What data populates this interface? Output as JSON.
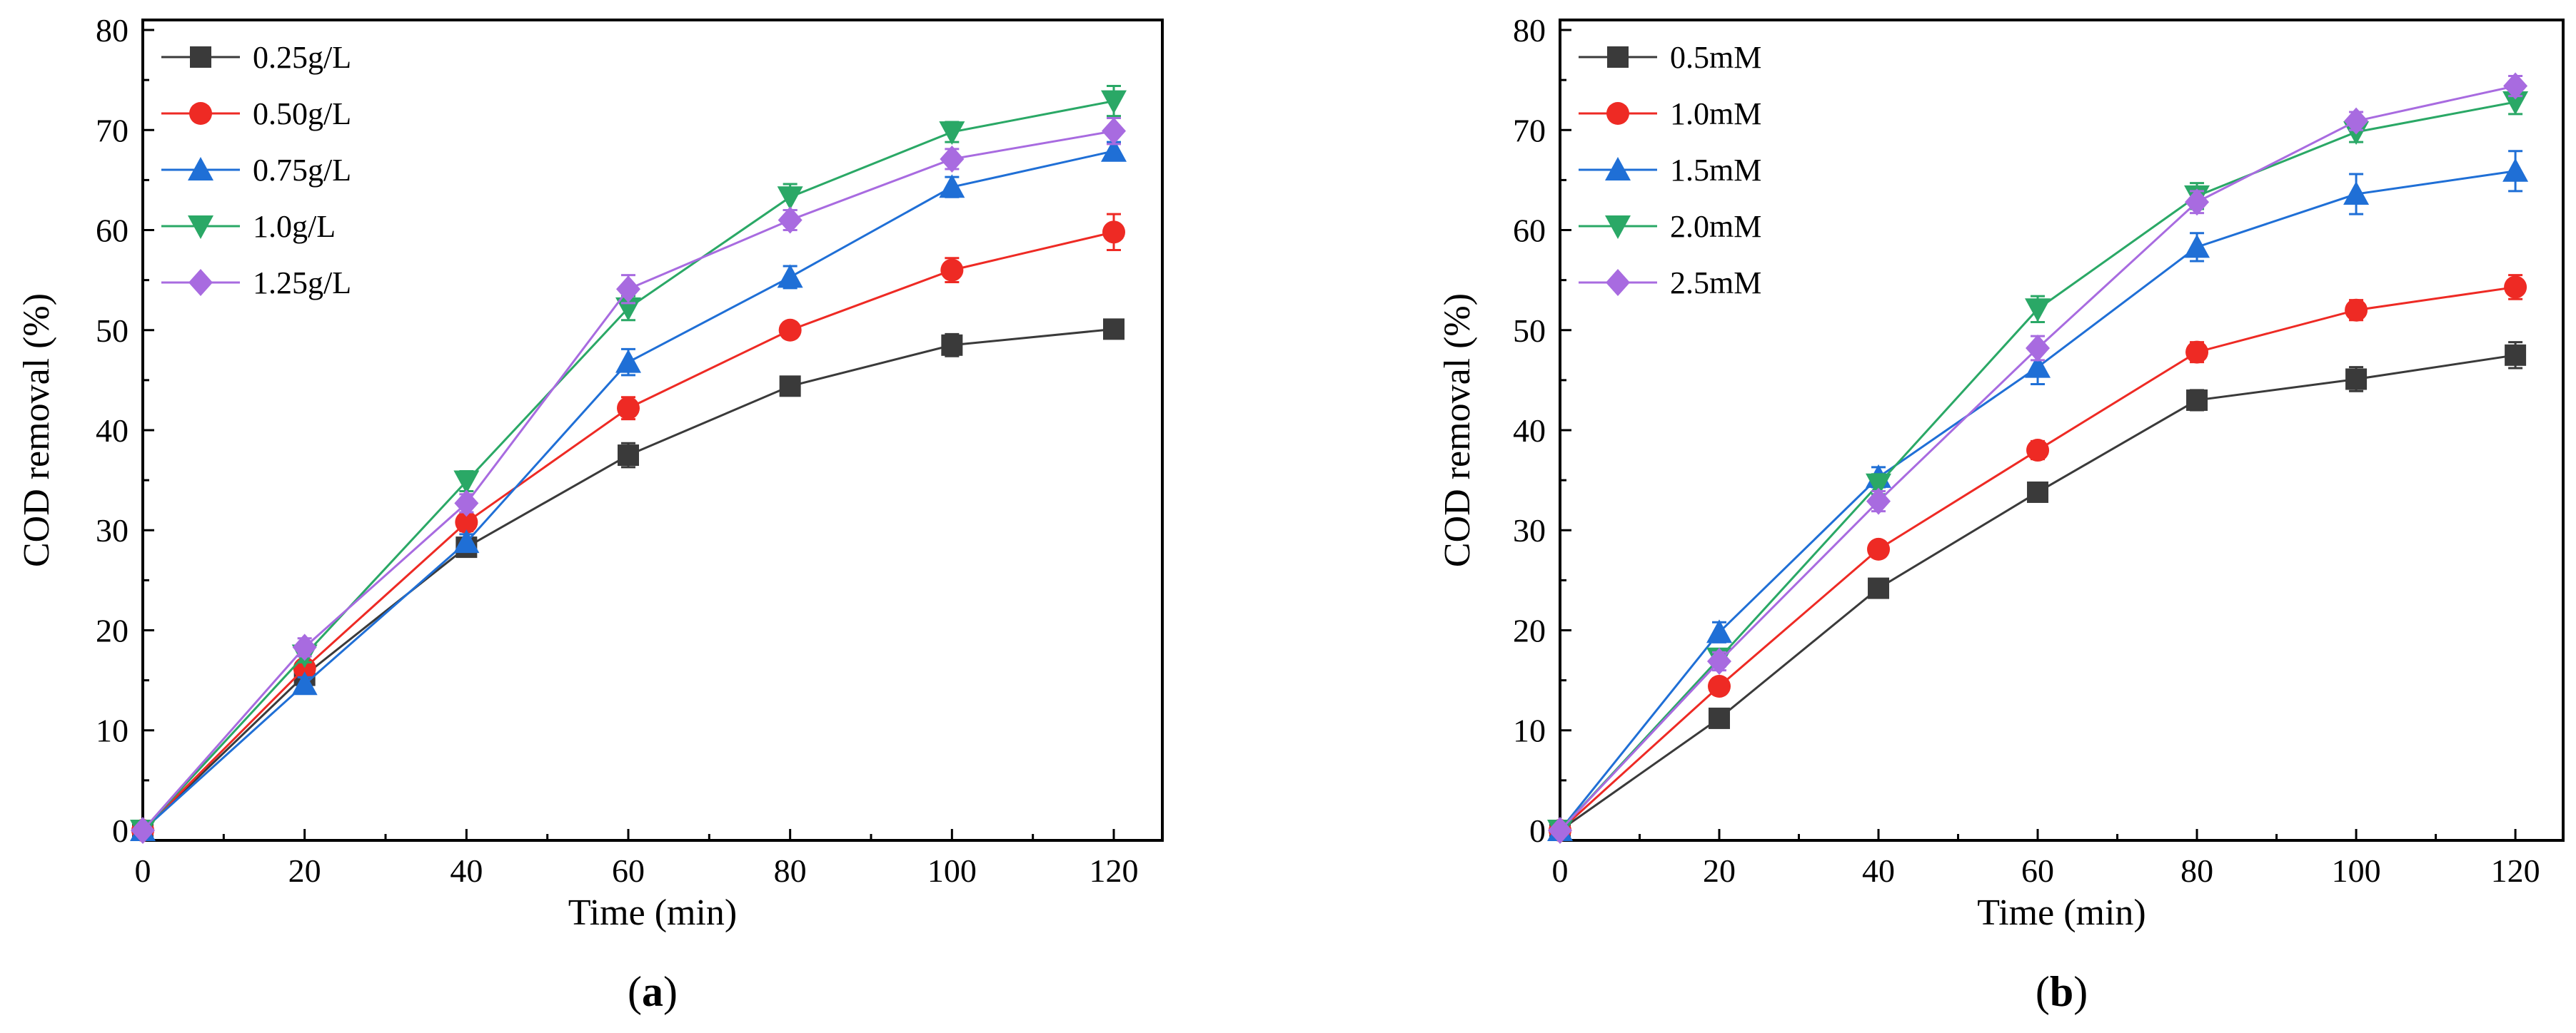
{
  "chart_data": [
    {
      "type": "line",
      "panel_label": "a",
      "xlabel": "Time (min)",
      "ylabel": "COD removal (%)",
      "xlim": [
        0,
        126
      ],
      "ylim": [
        -1,
        81
      ],
      "x_ticks": [
        0,
        20,
        40,
        60,
        80,
        100,
        120
      ],
      "y_ticks": [
        0,
        10,
        20,
        30,
        40,
        50,
        60,
        70,
        80
      ],
      "x": [
        0,
        20,
        40,
        60,
        80,
        100,
        120
      ],
      "legend_position": "top-left",
      "series": [
        {
          "name": "0.25g/L",
          "color": "#3a3a3a",
          "marker": "square",
          "values": [
            0,
            15.5,
            28.3,
            37.5,
            44.4,
            48.5,
            50.1
          ],
          "errors": [
            0,
            0.7,
            0.8,
            1.2,
            0.6,
            1.1,
            0.7
          ]
        },
        {
          "name": "0.50g/L",
          "color": "#ee2a24",
          "marker": "circle",
          "values": [
            0,
            16.2,
            30.8,
            42.2,
            50.0,
            56.0,
            59.8
          ],
          "errors": [
            0,
            0.7,
            0.9,
            1.1,
            0.8,
            1.2,
            1.8
          ]
        },
        {
          "name": "0.75g/L",
          "color": "#1f6fd6",
          "marker": "triangle-up",
          "values": [
            0,
            14.6,
            28.8,
            46.8,
            55.3,
            64.3,
            67.9
          ],
          "errors": [
            0,
            0.7,
            0.8,
            1.3,
            1.1,
            1.0,
            0.9
          ]
        },
        {
          "name": "1.0g/L",
          "color": "#2aa866",
          "marker": "triangle-down",
          "values": [
            0,
            17.5,
            34.9,
            52.2,
            63.3,
            69.8,
            72.9
          ],
          "errors": [
            0,
            0.7,
            1.0,
            1.2,
            1.3,
            1.0,
            1.5
          ]
        },
        {
          "name": "1.25g/L",
          "color": "#a86be0",
          "marker": "diamond",
          "values": [
            0,
            18.3,
            32.7,
            54.1,
            61.0,
            67.1,
            69.9
          ],
          "errors": [
            0,
            0.9,
            0.9,
            1.4,
            1.0,
            1.0,
            1.3
          ]
        }
      ]
    },
    {
      "type": "line",
      "panel_label": "b",
      "xlabel": "Time (min)",
      "ylabel": "COD removal (%)",
      "xlim": [
        0,
        126
      ],
      "ylim": [
        -1,
        81
      ],
      "x_ticks": [
        0,
        20,
        40,
        60,
        80,
        100,
        120
      ],
      "y_ticks": [
        0,
        10,
        20,
        30,
        40,
        50,
        60,
        70,
        80
      ],
      "x": [
        0,
        20,
        40,
        60,
        80,
        100,
        120
      ],
      "legend_position": "top-left",
      "series": [
        {
          "name": "0.5mM",
          "color": "#3a3a3a",
          "marker": "square",
          "values": [
            0,
            11.2,
            24.2,
            33.8,
            43.0,
            45.1,
            47.5
          ],
          "errors": [
            0,
            0.7,
            0.8,
            0.9,
            1.0,
            1.2,
            1.3
          ]
        },
        {
          "name": "1.0mM",
          "color": "#ee2a24",
          "marker": "circle",
          "values": [
            0,
            14.4,
            28.1,
            38.0,
            47.8,
            52.0,
            54.3
          ],
          "errors": [
            0,
            0.8,
            0.8,
            0.9,
            1.0,
            1.0,
            1.2
          ]
        },
        {
          "name": "1.5mM",
          "color": "#1f6fd6",
          "marker": "triangle-up",
          "values": [
            0,
            19.8,
            35.3,
            46.3,
            58.3,
            63.6,
            65.9
          ],
          "errors": [
            0,
            1.0,
            1.0,
            1.7,
            1.4,
            2.0,
            2.0
          ]
        },
        {
          "name": "2.0mM",
          "color": "#2aa866",
          "marker": "triangle-down",
          "values": [
            0,
            17.2,
            34.6,
            52.1,
            63.4,
            69.8,
            72.8
          ],
          "errors": [
            0,
            0.8,
            1.0,
            1.3,
            1.3,
            1.0,
            1.2
          ]
        },
        {
          "name": "2.5mM",
          "color": "#a86be0",
          "marker": "diamond",
          "values": [
            0,
            16.9,
            32.9,
            48.2,
            62.8,
            70.9,
            74.4
          ],
          "errors": [
            0,
            0.9,
            1.0,
            1.2,
            1.1,
            0.9,
            1.0
          ]
        }
      ]
    }
  ]
}
